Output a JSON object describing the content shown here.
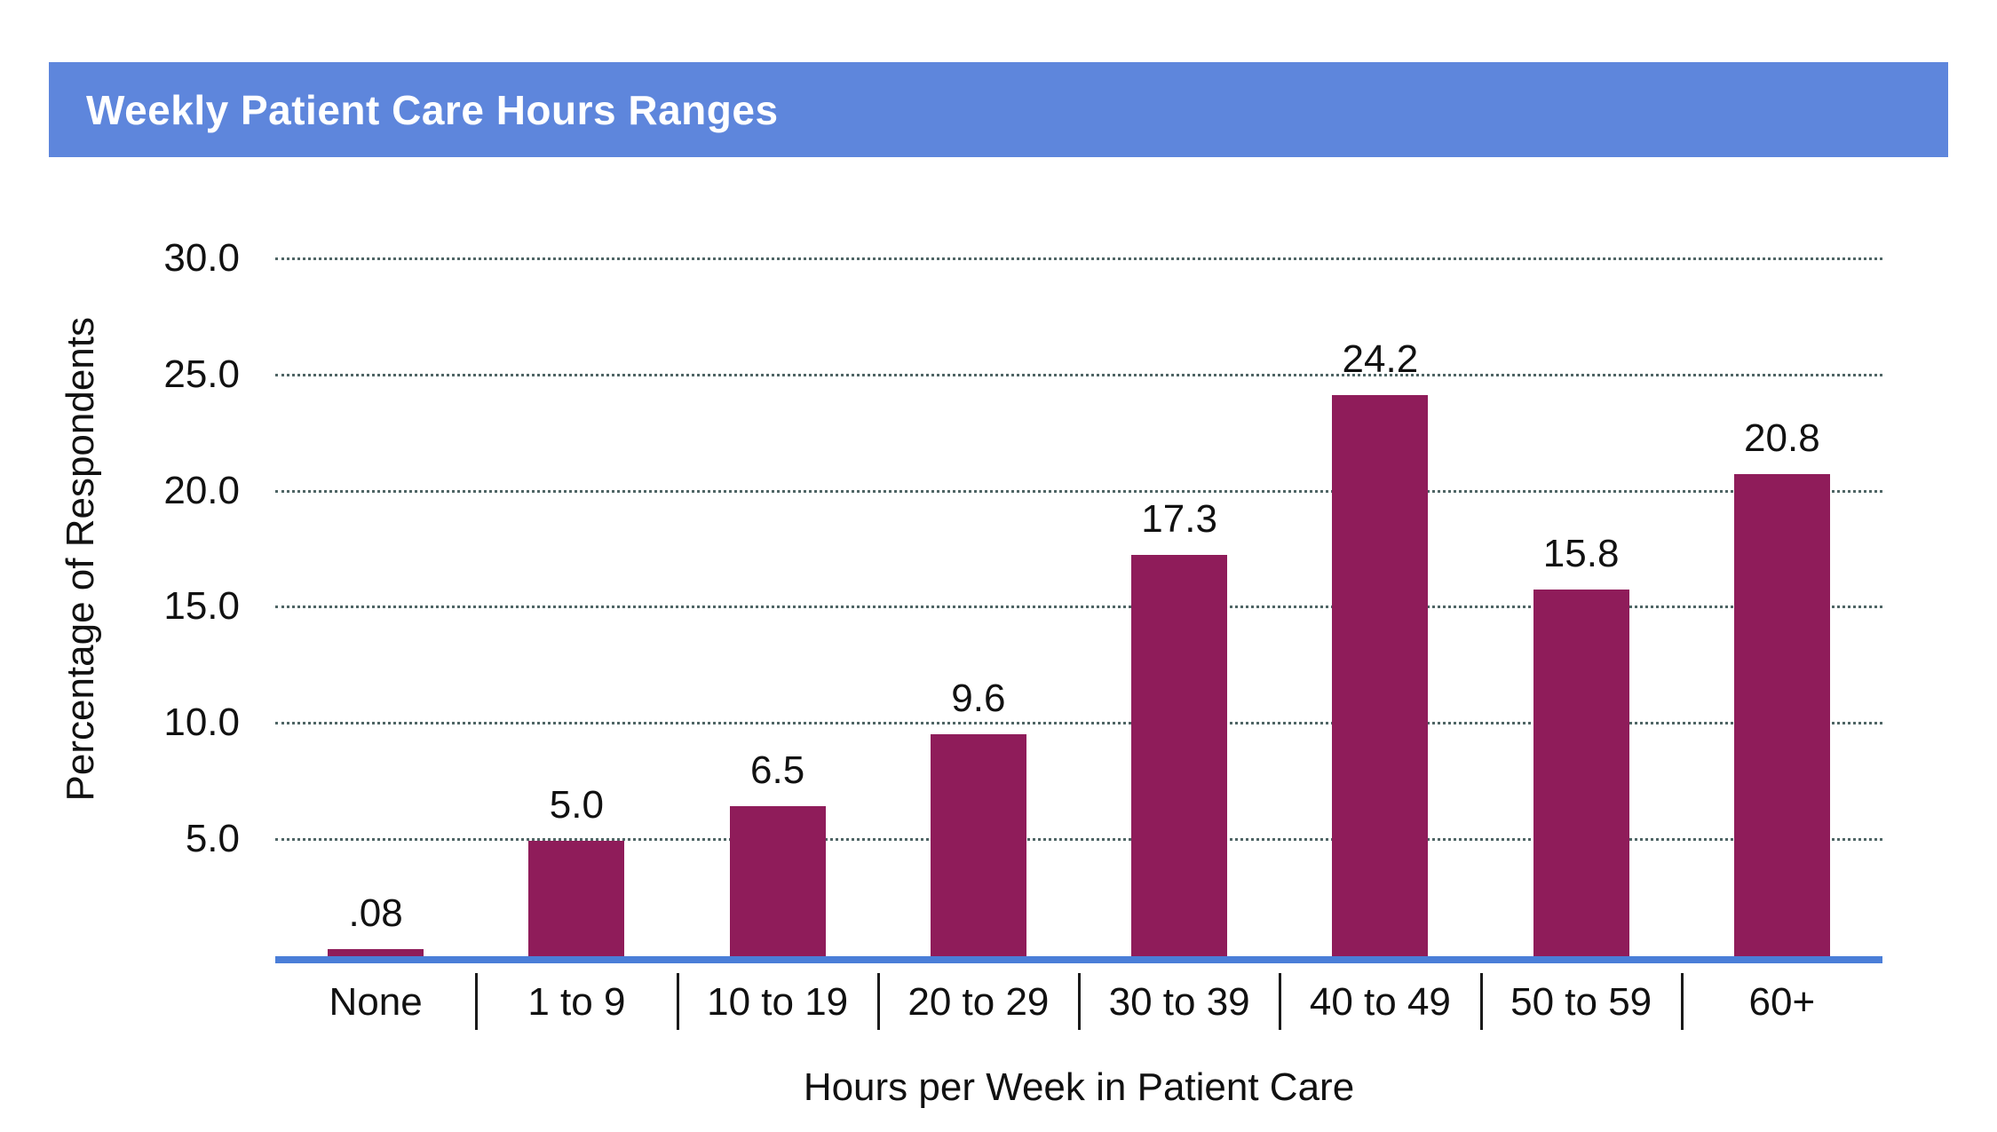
{
  "header": {
    "title": "Weekly Patient Care Hours Ranges"
  },
  "colors": {
    "header_bg": "#5e86dc",
    "header_text": "#ffffff",
    "bar": "#8f1c5a",
    "baseline": "#4a7ed8",
    "gridline": "#3d5555",
    "text": "#111111"
  },
  "chart_data": {
    "type": "bar",
    "title": "Weekly Patient Care Hours Ranges",
    "categories": [
      "None",
      "1 to 9",
      "10 to 19",
      "20 to 29",
      "30 to 39",
      "40 to 49",
      "50 to 59",
      "60+"
    ],
    "values": [
      0.08,
      5.0,
      6.5,
      9.6,
      17.3,
      24.2,
      15.8,
      20.8
    ],
    "value_labels": [
      ".08",
      "5.0",
      "6.5",
      "9.6",
      "17.3",
      "24.2",
      "15.8",
      "20.8"
    ],
    "xlabel": "Hours per Week in Patient Care",
    "ylabel": "Percentage of Respondents",
    "yticks": [
      30.0,
      25.0,
      20.0,
      15.0,
      10.0,
      5.0
    ],
    "ytick_labels": [
      "30.0",
      "25.0",
      "20.0",
      "15.0",
      "10.0",
      "5.0"
    ],
    "ylim": [
      0,
      32.4
    ],
    "grid": "dotted-horizontal",
    "legend": "none",
    "bar_color": "#8f1c5a",
    "axis_line_color": "#4a7ed8"
  }
}
